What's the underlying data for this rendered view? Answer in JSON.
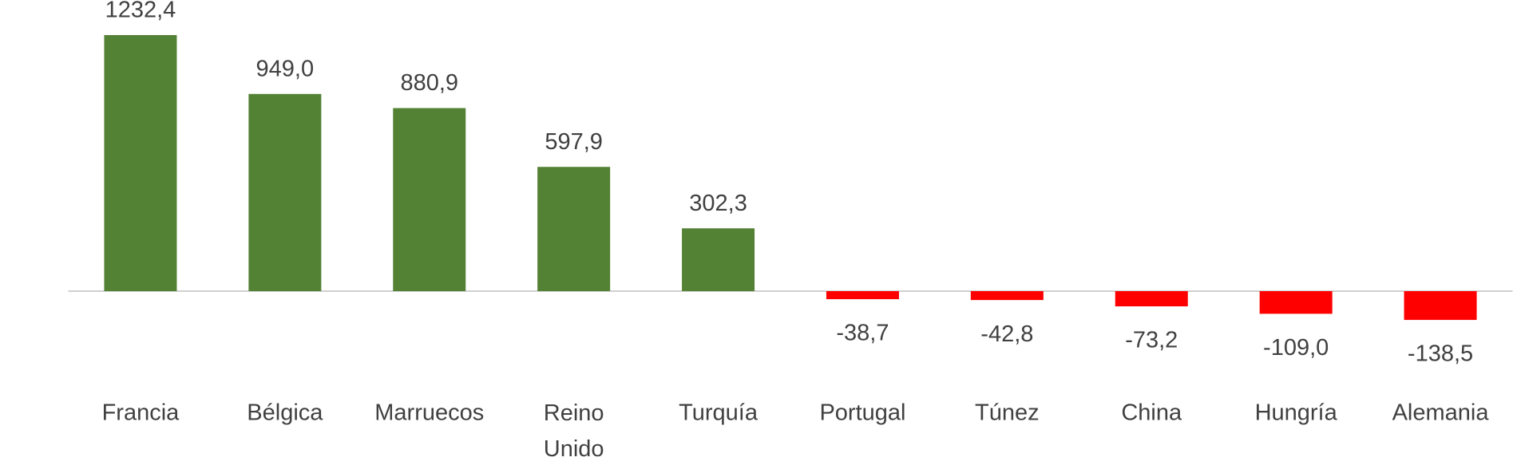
{
  "chart_data": {
    "type": "bar",
    "categories": [
      "Francia",
      "Bélgica",
      "Marruecos",
      "Reino Unido",
      "Turquía",
      "Portugal",
      "Túnez",
      "China",
      "Hungría",
      "Alemania"
    ],
    "values": [
      1232.4,
      949.0,
      880.9,
      597.9,
      302.3,
      -38.7,
      -42.8,
      -73.2,
      -109.0,
      -138.5
    ],
    "value_labels": [
      "1232,4",
      "949,0",
      "880,9",
      "597,9",
      "302,3",
      "-38,7",
      "-42,8",
      "-73,2",
      "-109,0",
      "-138,5"
    ],
    "color": "#548235",
    "negative_color": "#ff0000",
    "ylim": [
      -200,
      1300
    ]
  }
}
